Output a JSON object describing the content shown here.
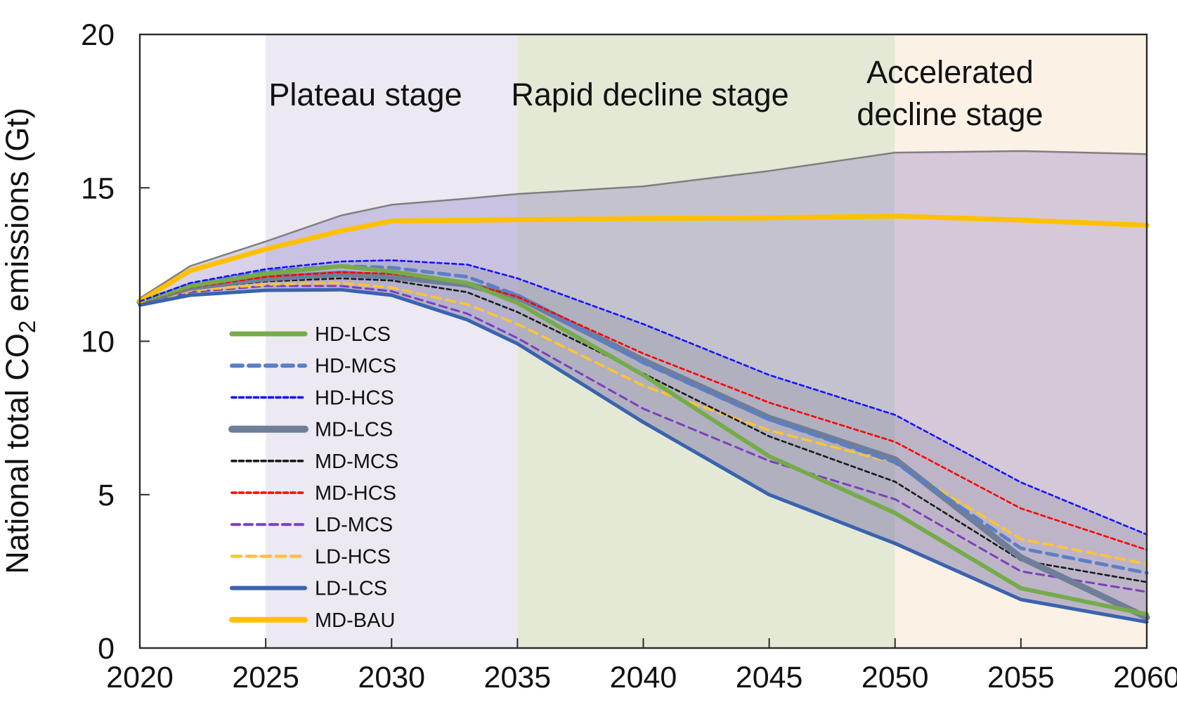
{
  "chart_data": {
    "type": "line",
    "title": "",
    "xlabel": "",
    "ylabel": "National total CO2 emissions (Gt)",
    "ylabel_parts": {
      "pre": "National total CO",
      "sub": "2",
      "post": " emissions (Gt)"
    },
    "xlim": [
      2020,
      2060
    ],
    "ylim": [
      0,
      20
    ],
    "x_ticks": [
      2020,
      2025,
      2030,
      2035,
      2040,
      2045,
      2050,
      2055,
      2060
    ],
    "y_ticks": [
      0,
      5,
      10,
      15,
      20
    ],
    "grid": false,
    "legend_position": "inside-left-middle",
    "stages": [
      {
        "id": "plateau",
        "lines": [
          "Plateau stage"
        ],
        "from": 2025,
        "to": 2035,
        "color": "#ECE9F3"
      },
      {
        "id": "rapid",
        "lines": [
          "Rapid decline stage"
        ],
        "from": 2035,
        "to": 2050,
        "color": "#E4E9D6"
      },
      {
        "id": "accelerated",
        "lines": [
          "Accelerated",
          "decline stage"
        ],
        "from": 2050,
        "to": 2060,
        "color": "#FCF1E5"
      }
    ],
    "x": [
      2020,
      2022,
      2025,
      2028,
      2030,
      2033,
      2035,
      2040,
      2045,
      2050,
      2055,
      2060
    ],
    "series": [
      {
        "id": "ENV_TOP",
        "label": "",
        "color": "#7F7F7F",
        "width": 2.5,
        "dash": "",
        "values": [
          11.4,
          12.45,
          13.25,
          14.1,
          14.45,
          14.65,
          14.8,
          15.05,
          15.55,
          16.15,
          16.2,
          16.1
        ]
      },
      {
        "id": "LD_MCS",
        "label": "LD-MCS",
        "color": "#7D3FBE",
        "width": 3.0,
        "dash": "11 7",
        "values": [
          11.2,
          11.6,
          11.8,
          11.8,
          11.63,
          10.9,
          10.1,
          7.8,
          6.1,
          4.85,
          2.5,
          1.83
        ]
      },
      {
        "id": "LD_HCS",
        "label": "LD-HCS",
        "color": "#FFC433",
        "width": 3.6,
        "dash": "13 8",
        "values": [
          11.2,
          11.65,
          11.85,
          11.9,
          11.75,
          11.2,
          10.56,
          8.55,
          7.1,
          6.03,
          3.55,
          2.74
        ]
      },
      {
        "id": "MD_MCS",
        "label": "MD-MCS",
        "color": "#1A1A1A",
        "width": 2.6,
        "dash": "6 4.5",
        "values": [
          11.25,
          11.7,
          11.95,
          12.05,
          11.98,
          11.6,
          10.95,
          8.95,
          6.9,
          5.42,
          2.86,
          2.15
        ]
      },
      {
        "id": "MD_LCS",
        "label": "MD-LCS",
        "color": "#6F7E99",
        "width": 9.0,
        "dash": "",
        "values": [
          11.28,
          11.75,
          12.05,
          12.2,
          12.11,
          11.85,
          11.45,
          9.37,
          7.5,
          6.15,
          2.95,
          1.0
        ]
      },
      {
        "id": "HD_MCS",
        "label": "HD-MCS",
        "color": "#5B7FC7",
        "width": 5.0,
        "dash": "15 9",
        "values": [
          11.3,
          11.85,
          12.28,
          12.45,
          12.4,
          12.1,
          11.5,
          9.3,
          7.45,
          6.05,
          3.25,
          2.45
        ]
      },
      {
        "id": "MD_HCS",
        "label": "MD-HCS",
        "color": "#FF0000",
        "width": 2.6,
        "dash": "6 4.5",
        "values": [
          11.25,
          11.75,
          12.1,
          12.25,
          12.2,
          11.9,
          11.45,
          9.6,
          8.0,
          6.72,
          4.55,
          3.2
        ]
      },
      {
        "id": "HD_LCS",
        "label": "HD-LCS",
        "color": "#76AB4A",
        "width": 6.0,
        "dash": "",
        "values": [
          11.3,
          11.8,
          12.2,
          12.45,
          12.27,
          11.9,
          11.25,
          8.9,
          6.25,
          4.4,
          1.95,
          1.1
        ]
      },
      {
        "id": "LD_LCS",
        "label": "LD-LCS",
        "color": "#3A63AE",
        "width": 5.0,
        "dash": "",
        "values": [
          11.18,
          11.5,
          11.66,
          11.68,
          11.5,
          10.7,
          9.92,
          7.36,
          5.0,
          3.41,
          1.58,
          0.85
        ]
      },
      {
        "id": "MD_BAU",
        "label": "MD-BAU",
        "color": "#FFC000",
        "width": 7.0,
        "dash": "",
        "values": [
          11.3,
          12.3,
          13.0,
          13.6,
          13.92,
          13.94,
          13.96,
          14.0,
          14.02,
          14.08,
          13.95,
          13.78
        ]
      },
      {
        "id": "HD_HCS",
        "label": "HD-HCS",
        "color": "#1414FF",
        "width": 2.6,
        "dash": "6 4.5",
        "values": [
          11.3,
          11.9,
          12.35,
          12.6,
          12.64,
          12.5,
          12.05,
          10.56,
          8.9,
          7.6,
          5.4,
          3.7
        ]
      }
    ],
    "envelopes": [
      {
        "id": "range-all-scenarios",
        "top": "ENV_TOP",
        "bottom": "LD_LCS",
        "color": "rgba(138,119,192,0.34)"
      },
      {
        "id": "range-mitigation",
        "top": "HD_HCS",
        "bottom": "LD_LCS",
        "color": "rgba(96,104,128,0.20)"
      }
    ]
  },
  "legend": {
    "order": [
      "HD_LCS",
      "HD_MCS",
      "HD_HCS",
      "MD_LCS",
      "MD_MCS",
      "MD_HCS",
      "LD_MCS",
      "LD_HCS",
      "LD_LCS",
      "MD_BAU"
    ],
    "labels": {
      "HD_LCS": "HD-LCS",
      "HD_MCS": "HD-MCS",
      "HD_HCS": "HD-HCS",
      "MD_LCS": "MD-LCS",
      "MD_MCS": "MD-MCS",
      "MD_HCS": "MD-HCS",
      "LD_MCS": "LD-MCS",
      "LD_HCS": "LD-HCS",
      "LD_LCS": "LD-LCS",
      "MD_BAU": "MD-BAU"
    }
  }
}
